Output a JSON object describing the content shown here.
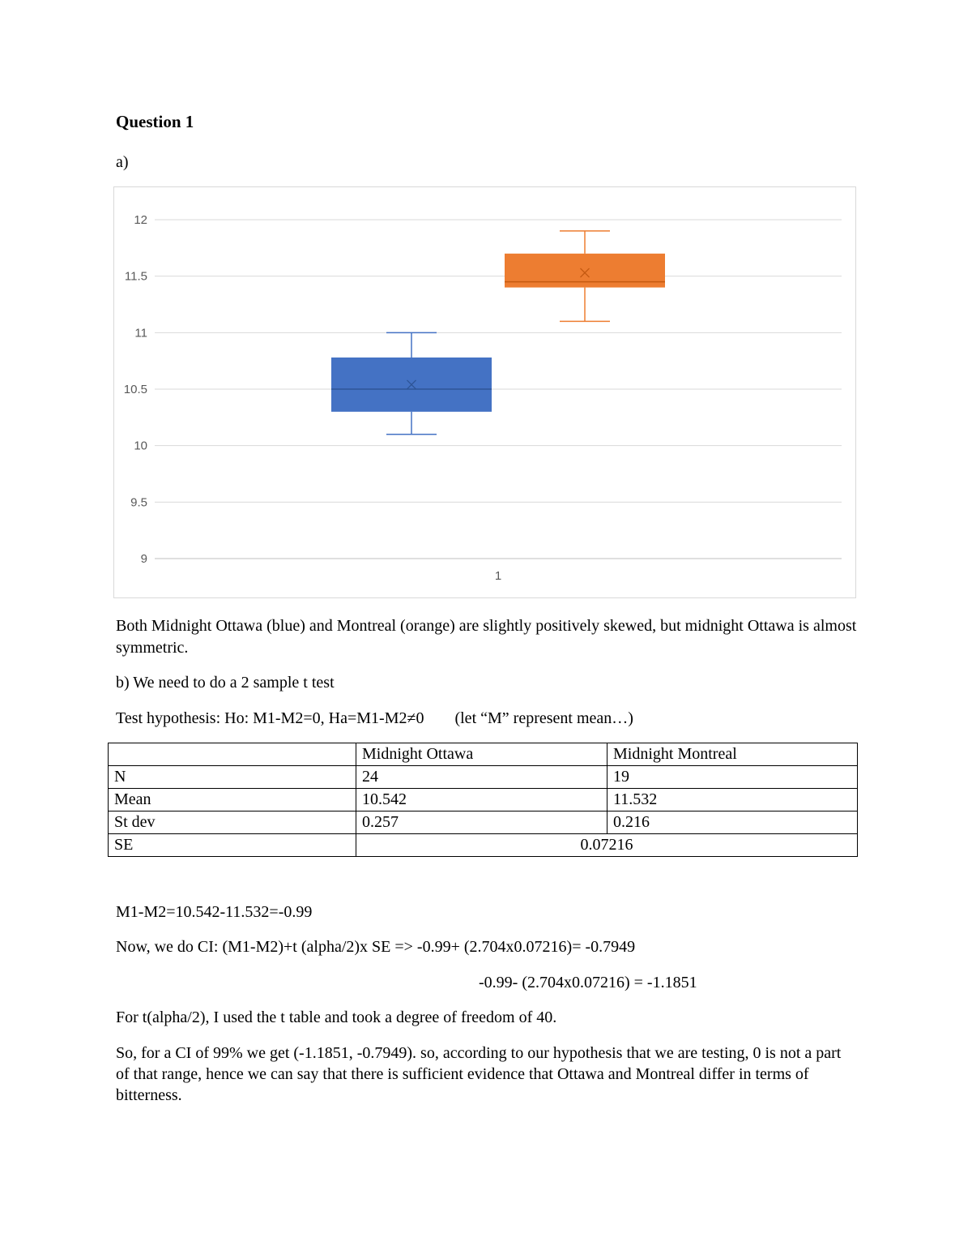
{
  "page": {
    "heading": "Question 1",
    "part_a_label": "a)",
    "caption": "Both Midnight Ottawa (blue) and Montreal (orange) are slightly positively skewed, but midnight Ottawa is almost symmetric.",
    "part_b": "b) We need to do a 2 sample t test",
    "hypothesis_main": "Test hypothesis: Ho: M1-M2=0, Ha=M1-M2≠0",
    "hypothesis_note": "(let “M” represent mean…)",
    "calc_m1m2": "M1-M2=10.542-11.532=-0.99",
    "calc_ci_line1": "Now, we do CI: (M1-M2)+t (alpha/2)x SE => -0.99+ (2.704x0.07216)= -0.7949",
    "calc_ci_line2": "-0.99- (2.704x0.07216) = -1.1851",
    "t_note": "For t(alpha/2), I used the t table and took a degree of freedom of 40.",
    "conclusion": "So, for a CI of 99% we get (-1.1851, -0.7949). so, according to our hypothesis that we are testing, 0 is not a part of that range, hence we can say that there is sufficient evidence that Ottawa and Montreal differ in terms of bitterness."
  },
  "table": {
    "headers": [
      "",
      "Midnight Ottawa",
      "Midnight Montreal"
    ],
    "rows": [
      {
        "label": "N",
        "ottawa": "24",
        "montreal": "19"
      },
      {
        "label": "Mean",
        "ottawa": "10.542",
        "montreal": "11.532"
      },
      {
        "label": "St dev",
        "ottawa": "0.257",
        "montreal": "0.216"
      }
    ],
    "se_row": {
      "label": "SE",
      "value": "0.07216"
    }
  },
  "chart_data": {
    "type": "boxplot",
    "x_tick_label": "1",
    "y_axis": {
      "min": 9,
      "max": 12,
      "tick_step": 0.5,
      "ticks": [
        9,
        9.5,
        10,
        10.5,
        11,
        11.5,
        12
      ]
    },
    "series": [
      {
        "name": "Midnight Ottawa",
        "color": "#4472C4",
        "accent": "#2E5597",
        "min": 10.1,
        "q1": 10.3,
        "median": 10.5,
        "q3": 10.78,
        "max": 11.0,
        "mean": 10.54
      },
      {
        "name": "Midnight Montreal",
        "color": "#ED7D31",
        "accent": "#C55A11",
        "min": 11.1,
        "q1": 11.4,
        "median": 11.45,
        "q3": 11.7,
        "max": 11.9,
        "mean": 11.53
      }
    ],
    "gridline_color": "#D9D9D9",
    "axis_line_color": "#BFBFBF",
    "axis_label_color": "#595959",
    "legend_position": "none",
    "grid": true
  }
}
